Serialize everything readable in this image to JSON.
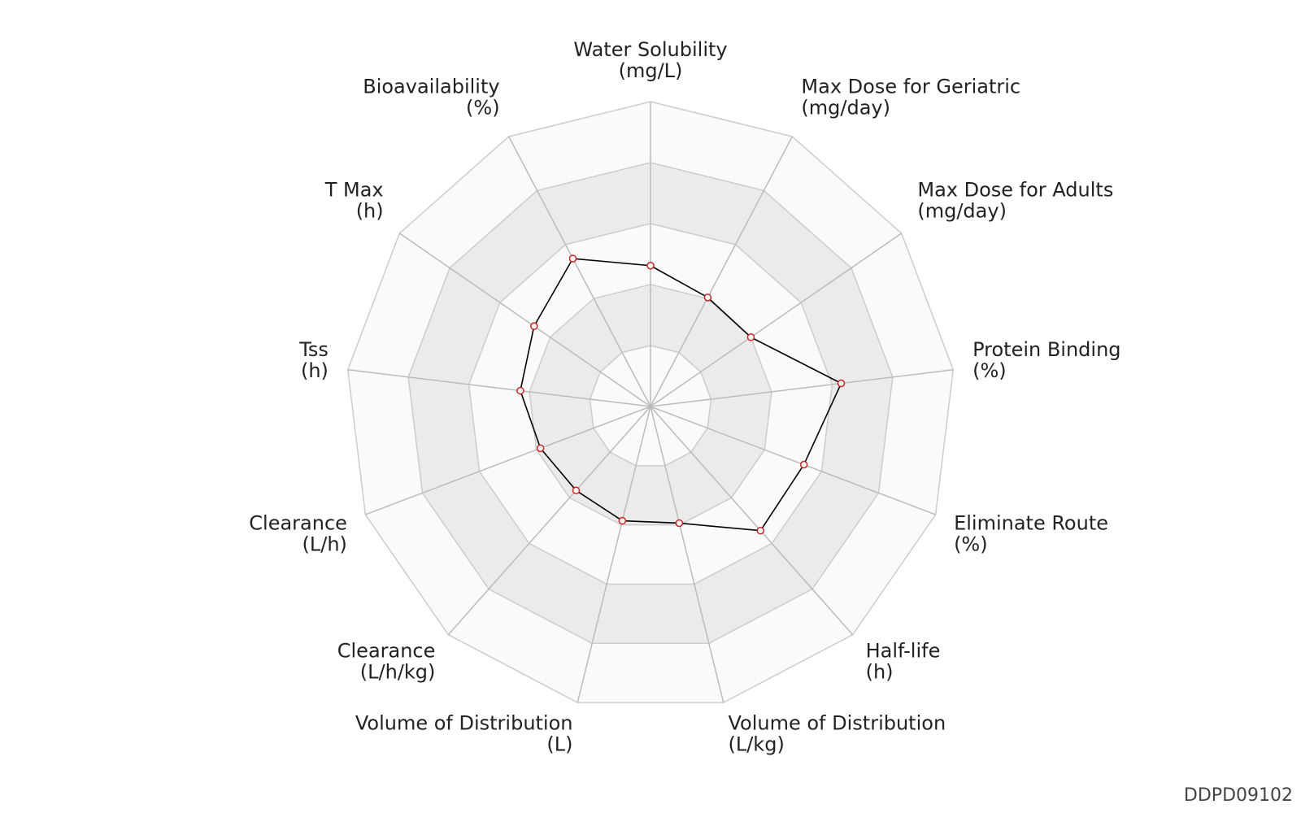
{
  "chart_data": {
    "type": "radar",
    "categories": [
      "Water Solubility",
      "Max Dose for Geriatric",
      "Max Dose for Adults",
      "Protein Binding",
      "Eliminate Route",
      "Half-life",
      "Volume of Distribution",
      "Volume of Distribution",
      "Clearance",
      "Clearance",
      "Tss",
      "T Max",
      "Bioavailability"
    ],
    "units": [
      "(mg/L)",
      "(mg/day)",
      "(mg/day)",
      "(%)",
      "(%)",
      "(h)",
      "(L/kg)",
      "(L)",
      "(L/h/kg)",
      "(L/h)",
      "(h)",
      "(h)",
      "(%)"
    ],
    "values": [
      2.31,
      2.02,
      2.0,
      3.15,
      2.69,
      2.72,
      1.97,
      1.93,
      1.84,
      1.93,
      2.15,
      2.32,
      2.74
    ],
    "rlim": [
      0,
      5
    ],
    "rings": [
      1,
      2,
      3,
      4,
      5
    ],
    "line_color": "#000000",
    "marker_color": "#cc2222",
    "watermark": "DDPD09102"
  }
}
